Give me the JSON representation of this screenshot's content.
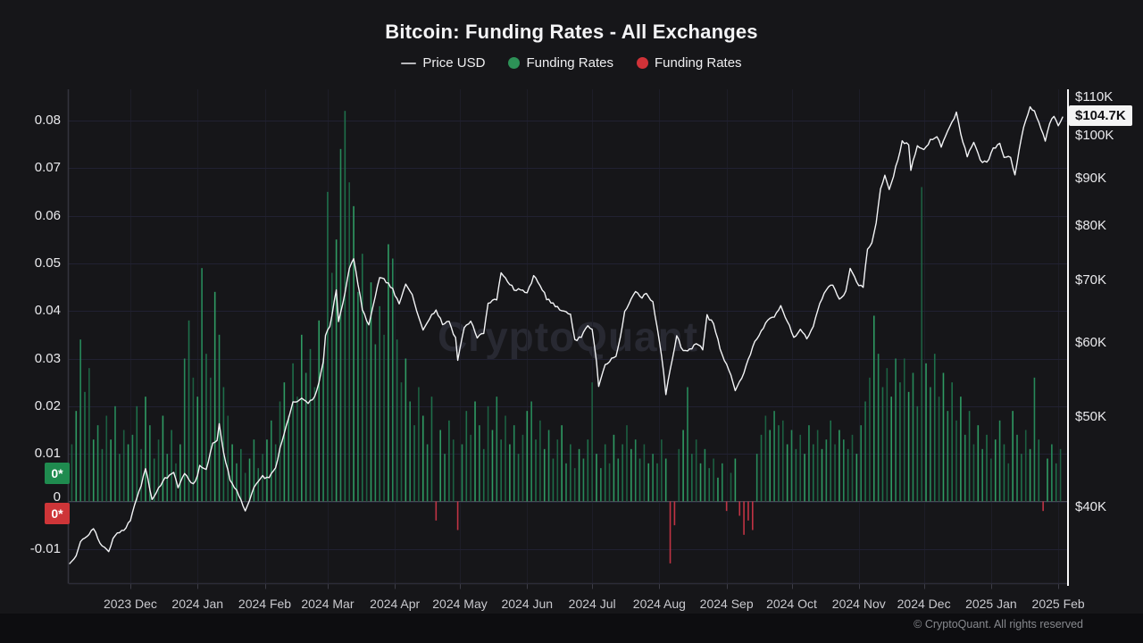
{
  "header": {
    "title": "Bitcoin: Funding Rates - All Exchanges"
  },
  "legend": {
    "items": [
      {
        "label": "Price USD",
        "type": "line",
        "color": "#b9b9bd"
      },
      {
        "label": "Funding Rates",
        "type": "dot",
        "color": "#2d9157"
      },
      {
        "label": "Funding Rates",
        "type": "dot",
        "color": "#d03238"
      }
    ]
  },
  "watermark": "CryptoQuant",
  "footer": {
    "copyright": "© CryptoQuant. All rights reserved"
  },
  "chart_data": {
    "type": "mixed",
    "title": "Bitcoin: Funding Rates - All Exchanges",
    "grid": true,
    "domain_days": 458,
    "x_axis": {
      "labels": [
        "2023 Dec",
        "2024 Jan",
        "2024 Feb",
        "2024 Mar",
        "2024 Apr",
        "2024 May",
        "2024 Jun",
        "2024 Jul",
        "2024 Aug",
        "2024 Sep",
        "2024 Oct",
        "2024 Nov",
        "2024 Dec",
        "2025 Jan",
        "2025 Feb"
      ],
      "month_days": [
        28,
        59,
        90,
        119,
        150,
        180,
        211,
        241,
        272,
        303,
        333,
        364,
        394,
        425,
        456
      ]
    },
    "left_axis": {
      "title": "Funding Rates",
      "ticks": [
        0.08,
        0.07,
        0.06,
        0.05,
        0.04,
        0.03,
        0.02,
        0.01,
        0,
        -0.01
      ],
      "labels": [
        "0.08",
        "0.07",
        "0.06",
        "0.05",
        "0.04",
        "0.03",
        "0.02",
        "0.01",
        "0",
        "-0.01"
      ],
      "badges": [
        {
          "label": "0*",
          "color": "#1f8b4f"
        },
        {
          "label": "0*",
          "color": "#ce3538"
        }
      ]
    },
    "right_axis": {
      "title": "Price USD",
      "scale": "log",
      "ticks_k": [
        110,
        100,
        90,
        80,
        70,
        60,
        50,
        40
      ],
      "labels": [
        "$110K",
        "$100K",
        "$90K",
        "$80K",
        "$70K",
        "$60K",
        "$50K",
        "$40K"
      ],
      "current_price_label": "$104.7K"
    },
    "series": [
      {
        "name": "Price USD",
        "type": "line",
        "axis": "right",
        "color": "#f3f4f6",
        "unit": "USD thousands",
        "anchors": [
          [
            0,
            34.8
          ],
          [
            3,
            35.4
          ],
          [
            5,
            36.8
          ],
          [
            8,
            37.2
          ],
          [
            11,
            38.0
          ],
          [
            14,
            36.6
          ],
          [
            18,
            35.9
          ],
          [
            21,
            37.4
          ],
          [
            25,
            37.8
          ],
          [
            28,
            38.7
          ],
          [
            31,
            40.9
          ],
          [
            33,
            42.3
          ],
          [
            35,
            43.9
          ],
          [
            38,
            40.8
          ],
          [
            41,
            41.9
          ],
          [
            43,
            42.7
          ],
          [
            46,
            43.3
          ],
          [
            48,
            43.7
          ],
          [
            50,
            42.1
          ],
          [
            53,
            43.6
          ],
          [
            56,
            42.4
          ],
          [
            58,
            42.6
          ],
          [
            60,
            44.2
          ],
          [
            63,
            44.0
          ],
          [
            66,
            46.7
          ],
          [
            68,
            47.2
          ],
          [
            69,
            49.0
          ],
          [
            71,
            45.8
          ],
          [
            74,
            42.8
          ],
          [
            78,
            41.3
          ],
          [
            81,
            39.6
          ],
          [
            85,
            42.0
          ],
          [
            89,
            43.1
          ],
          [
            92,
            43.0
          ],
          [
            95,
            44.2
          ],
          [
            98,
            47.1
          ],
          [
            101,
            49.9
          ],
          [
            103,
            51.8
          ],
          [
            107,
            52.3
          ],
          [
            110,
            51.6
          ],
          [
            113,
            52.5
          ],
          [
            115,
            54.5
          ],
          [
            117,
            57.1
          ],
          [
            118,
            61.2
          ],
          [
            120,
            62.4
          ],
          [
            123,
            68.3
          ],
          [
            124,
            63.2
          ],
          [
            126,
            66.1
          ],
          [
            129,
            72.1
          ],
          [
            131,
            73.6
          ],
          [
            133,
            69.4
          ],
          [
            135,
            65.3
          ],
          [
            138,
            62.5
          ],
          [
            141,
            67.2
          ],
          [
            143,
            70.5
          ],
          [
            146,
            69.8
          ],
          [
            149,
            68.5
          ],
          [
            152,
            65.9
          ],
          [
            155,
            69.4
          ],
          [
            158,
            67.6
          ],
          [
            161,
            63.9
          ],
          [
            163,
            61.9
          ],
          [
            166,
            63.8
          ],
          [
            169,
            64.9
          ],
          [
            172,
            62.9
          ],
          [
            175,
            63.2
          ],
          [
            178,
            60.6
          ],
          [
            179,
            57.6
          ],
          [
            182,
            62.3
          ],
          [
            185,
            63.2
          ],
          [
            188,
            60.9
          ],
          [
            191,
            61.4
          ],
          [
            193,
            66.2
          ],
          [
            197,
            66.9
          ],
          [
            199,
            71.4
          ],
          [
            202,
            69.9
          ],
          [
            205,
            68.4
          ],
          [
            208,
            68.3
          ],
          [
            211,
            67.7
          ],
          [
            214,
            70.6
          ],
          [
            217,
            69.3
          ],
          [
            220,
            66.9
          ],
          [
            223,
            66.1
          ],
          [
            226,
            65.1
          ],
          [
            229,
            64.9
          ],
          [
            231,
            64.2
          ],
          [
            233,
            60.3
          ],
          [
            236,
            60.9
          ],
          [
            239,
            62.8
          ],
          [
            241,
            62.0
          ],
          [
            243,
            57.1
          ],
          [
            244,
            53.9
          ],
          [
            247,
            56.8
          ],
          [
            250,
            57.7
          ],
          [
            252,
            58.0
          ],
          [
            254,
            60.8
          ],
          [
            256,
            64.7
          ],
          [
            259,
            66.7
          ],
          [
            261,
            68.2
          ],
          [
            264,
            67.0
          ],
          [
            266,
            67.9
          ],
          [
            269,
            66.3
          ],
          [
            271,
            62.4
          ],
          [
            273,
            58.2
          ],
          [
            275,
            52.8
          ],
          [
            277,
            56.1
          ],
          [
            280,
            61.0
          ],
          [
            283,
            58.7
          ],
          [
            286,
            58.9
          ],
          [
            289,
            60.0
          ],
          [
            292,
            59.1
          ],
          [
            294,
            64.1
          ],
          [
            297,
            62.9
          ],
          [
            300,
            59.1
          ],
          [
            302,
            57.3
          ],
          [
            304,
            56.2
          ],
          [
            307,
            53.4
          ],
          [
            310,
            54.9
          ],
          [
            313,
            57.6
          ],
          [
            316,
            60.1
          ],
          [
            319,
            61.7
          ],
          [
            322,
            63.4
          ],
          [
            325,
            64.0
          ],
          [
            328,
            65.7
          ],
          [
            331,
            63.3
          ],
          [
            334,
            60.8
          ],
          [
            337,
            62.1
          ],
          [
            340,
            60.7
          ],
          [
            343,
            62.5
          ],
          [
            346,
            66.1
          ],
          [
            349,
            68.4
          ],
          [
            352,
            69.2
          ],
          [
            355,
            66.9
          ],
          [
            358,
            68.0
          ],
          [
            360,
            72.3
          ],
          [
            363,
            69.5
          ],
          [
            366,
            68.7
          ],
          [
            368,
            75.6
          ],
          [
            370,
            76.7
          ],
          [
            372,
            80.4
          ],
          [
            374,
            88.0
          ],
          [
            376,
            90.5
          ],
          [
            378,
            87.4
          ],
          [
            380,
            90.6
          ],
          [
            382,
            94.3
          ],
          [
            384,
            98.5
          ],
          [
            387,
            97.9
          ],
          [
            388,
            91.9
          ],
          [
            391,
            97.4
          ],
          [
            394,
            96.4
          ],
          [
            397,
            98.8
          ],
          [
            400,
            99.9
          ],
          [
            402,
            97.3
          ],
          [
            405,
            101.4
          ],
          [
            408,
            104.5
          ],
          [
            409,
            106.2
          ],
          [
            411,
            100.2
          ],
          [
            414,
            95.2
          ],
          [
            417,
            98.6
          ],
          [
            420,
            94.2
          ],
          [
            423,
            93.4
          ],
          [
            426,
            96.9
          ],
          [
            429,
            98.2
          ],
          [
            431,
            95.1
          ],
          [
            434,
            94.6
          ],
          [
            436,
            90.6
          ],
          [
            439,
            99.5
          ],
          [
            441,
            104.2
          ],
          [
            443,
            107.2
          ],
          [
            445,
            106.1
          ],
          [
            447,
            103.7
          ],
          [
            450,
            98.6
          ],
          [
            452,
            103.3
          ],
          [
            454,
            104.8
          ],
          [
            456,
            102.3
          ],
          [
            458,
            104.7
          ]
        ],
        "last_value_label": "$104.7K"
      },
      {
        "name": "Funding Rates",
        "type": "bar",
        "axis": "left",
        "polarity": "positive",
        "color": "#27895a",
        "palette": [
          "#1e6f4a",
          "#27895a",
          "#2f9b63",
          "#1c5f41"
        ]
      },
      {
        "name": "Funding Rates",
        "type": "bar",
        "axis": "left",
        "polarity": "negative",
        "color": "#c13344",
        "palette": [
          "#c13344"
        ]
      }
    ],
    "funding_bars": {
      "start_day": 1,
      "pitch_days": 2,
      "values": [
        0.012,
        0.019,
        0.034,
        0.023,
        0.028,
        0.013,
        0.016,
        0.011,
        0.018,
        0.013,
        0.02,
        0.01,
        0.015,
        0.012,
        0.014,
        0.02,
        0.011,
        0.022,
        0.016,
        0.009,
        0.013,
        0.018,
        0.01,
        0.015,
        0.008,
        0.012,
        0.03,
        0.038,
        0.026,
        0.022,
        0.049,
        0.031,
        0.026,
        0.044,
        0.035,
        0.024,
        0.018,
        0.012,
        0.008,
        0.011,
        0.006,
        0.009,
        0.013,
        0.007,
        0.01,
        0.013,
        0.017,
        0.012,
        0.021,
        0.025,
        0.018,
        0.029,
        0.022,
        0.035,
        0.027,
        0.032,
        0.024,
        0.038,
        0.03,
        0.065,
        0.048,
        0.055,
        0.074,
        0.082,
        0.067,
        0.062,
        0.044,
        0.052,
        0.038,
        0.046,
        0.033,
        0.041,
        0.035,
        0.054,
        0.051,
        0.034,
        0.025,
        0.03,
        0.021,
        0.016,
        0.024,
        0.018,
        0.012,
        0.022,
        -0.004,
        0.015,
        0.01,
        0.017,
        0.013,
        -0.006,
        0.012,
        0.019,
        0.014,
        0.021,
        0.016,
        0.011,
        0.02,
        0.015,
        0.022,
        0.013,
        0.018,
        0.012,
        0.016,
        0.01,
        0.014,
        0.019,
        0.021,
        0.013,
        0.017,
        0.011,
        0.015,
        0.009,
        0.013,
        0.016,
        0.008,
        0.012,
        0.007,
        0.011,
        0.009,
        0.013,
        0.025,
        0.01,
        0.007,
        0.012,
        0.008,
        0.014,
        0.009,
        0.012,
        0.016,
        0.011,
        0.013,
        0.009,
        0.012,
        0.008,
        0.01,
        0.008,
        0.013,
        0.009,
        -0.013,
        -0.005,
        0.011,
        0.015,
        0.024,
        0.01,
        0.013,
        0.008,
        0.011,
        0.007,
        0.009,
        0.005,
        0.008,
        -0.002,
        0.006,
        0.009,
        -0.003,
        -0.007,
        -0.004,
        -0.006,
        0.01,
        0.014,
        0.018,
        0.015,
        0.019,
        0.016,
        0.017,
        0.012,
        0.015,
        0.011,
        0.014,
        0.01,
        0.016,
        0.012,
        0.015,
        0.011,
        0.013,
        0.017,
        0.012,
        0.015,
        0.013,
        0.011,
        0.014,
        0.01,
        0.016,
        0.021,
        0.026,
        0.039,
        0.031,
        0.024,
        0.028,
        0.022,
        0.03,
        0.025,
        0.03,
        0.023,
        0.027,
        0.02,
        0.066,
        0.029,
        0.024,
        0.031,
        0.022,
        0.027,
        0.019,
        0.025,
        0.017,
        0.022,
        0.014,
        0.019,
        0.012,
        0.016,
        0.011,
        0.014,
        0.009,
        0.013,
        0.017,
        0.012,
        0.008,
        0.019,
        0.014,
        0.01,
        0.015,
        0.011,
        0.026,
        0.013,
        -0.002,
        0.009,
        0.012,
        0.008,
        0.011
      ]
    }
  }
}
